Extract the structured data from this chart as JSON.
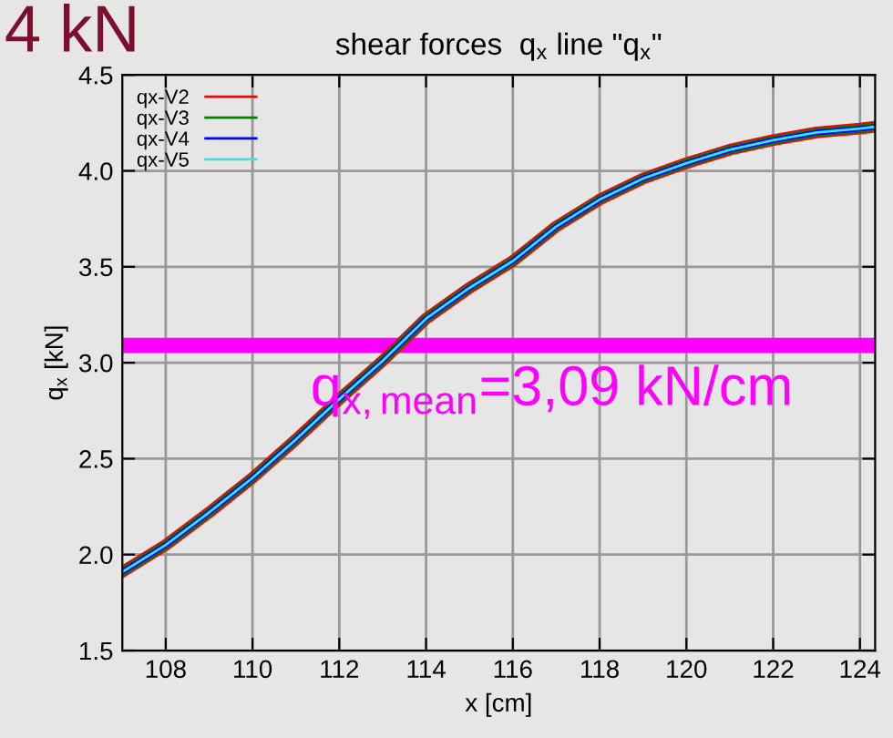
{
  "chart_data": {
    "type": "line",
    "title": "shear forces  q$_{x}$ line \"q$_{x}$\"",
    "xlabel": "x [cm]",
    "ylabel": "q$_{x}$ [kN]",
    "x": [
      107,
      108,
      109,
      110,
      111,
      112,
      113,
      114,
      115,
      116,
      117,
      118,
      119,
      120,
      121,
      122,
      123,
      124,
      124.35
    ],
    "series": [
      {
        "name": "qx-V2",
        "color": "#ff0000",
        "values": [
          1.91,
          2.05,
          2.22,
          2.4,
          2.6,
          2.81,
          3.01,
          3.23,
          3.39,
          3.53,
          3.71,
          3.85,
          3.96,
          4.04,
          4.11,
          4.16,
          4.2,
          4.22,
          4.23
        ]
      },
      {
        "name": "qx-V3",
        "color": "#008000",
        "values": [
          1.91,
          2.05,
          2.22,
          2.4,
          2.6,
          2.81,
          3.01,
          3.23,
          3.39,
          3.53,
          3.71,
          3.85,
          3.96,
          4.04,
          4.11,
          4.16,
          4.2,
          4.22,
          4.23
        ]
      },
      {
        "name": "qx-V4",
        "color": "#0000ff",
        "values": [
          1.91,
          2.05,
          2.22,
          2.4,
          2.6,
          2.81,
          3.01,
          3.23,
          3.39,
          3.53,
          3.71,
          3.85,
          3.96,
          4.04,
          4.11,
          4.16,
          4.2,
          4.22,
          4.23
        ]
      },
      {
        "name": "qx-V5",
        "color": "#40e0e0",
        "values": [
          1.91,
          2.05,
          2.22,
          2.4,
          2.6,
          2.81,
          3.01,
          3.23,
          3.39,
          3.53,
          3.71,
          3.85,
          3.96,
          4.04,
          4.11,
          4.16,
          4.2,
          4.22,
          4.23
        ]
      }
    ],
    "xlim": [
      107,
      124.35
    ],
    "ylim": [
      1.5,
      4.5
    ],
    "xticks": [
      108,
      110,
      112,
      114,
      116,
      118,
      120,
      122,
      124
    ],
    "yticks": [
      1.5,
      {
        "value": 2,
        "label": "2.0"
      },
      2.5,
      {
        "value": 3,
        "label": "3.0"
      },
      3.5,
      {
        "value": 4,
        "label": "4.0"
      },
      4.5
    ],
    "ref_lines": [
      {
        "axis": "y",
        "value": 3.09,
        "label": "q$_{x,mean}$=3,09 kN/cm",
        "color": "#ff00ff"
      }
    ],
    "annotations": [
      "4 kN"
    ],
    "grid": true,
    "legend": "top left",
    "marker": "none",
    "line_style": "solid"
  }
}
